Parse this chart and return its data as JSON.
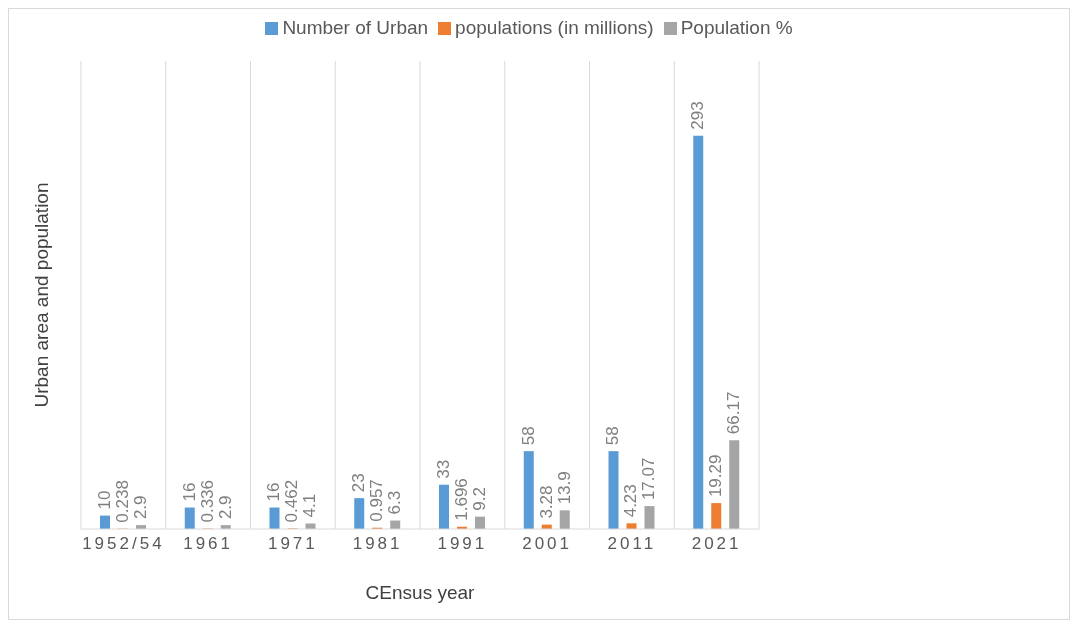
{
  "chart_data": {
    "type": "bar",
    "xlabel": "CEnsus year",
    "ylabel": "Urban area and population",
    "categories": [
      "1952/54",
      "1961",
      "1971",
      "1981",
      "1991",
      "2001",
      "2011",
      "2021"
    ],
    "series": [
      {
        "name": "Number of Urban",
        "color": "#5b9bd5",
        "values": [
          10,
          16,
          16,
          23,
          33,
          58,
          58,
          293
        ]
      },
      {
        "name": "populations (in millions)",
        "color": "#ed7d31",
        "values": [
          0.238,
          0.336,
          0.462,
          0.957,
          1.696,
          3.28,
          4.23,
          19.29
        ]
      },
      {
        "name": "Population %",
        "color": "#a5a5a5",
        "values": [
          2.9,
          2.9,
          4.1,
          6.3,
          9.2,
          13.9,
          17.07,
          66.17
        ]
      }
    ],
    "data_labels": true,
    "grid": "x",
    "legend": "top"
  }
}
